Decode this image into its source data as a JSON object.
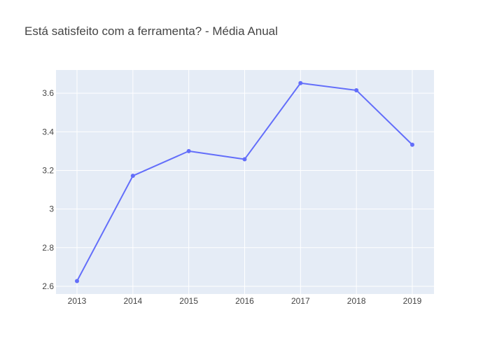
{
  "chart_data": {
    "type": "line",
    "title": "Está satisfeito com a ferramenta?  - Média Anual",
    "xlabel": "",
    "ylabel": "",
    "categories": [
      "2013",
      "2014",
      "2015",
      "2016",
      "2017",
      "2018",
      "2019"
    ],
    "series": [
      {
        "values": [
          2.627,
          3.172,
          3.3,
          3.258,
          3.652,
          3.615,
          3.333
        ]
      }
    ],
    "ylim": [
      2.56,
      3.72
    ],
    "yticks": [
      2.6,
      2.8,
      3,
      3.2,
      3.4,
      3.6
    ],
    "ytick_labels": [
      "2.6",
      "2.8",
      "3",
      "3.2",
      "3.4",
      "3.6"
    ],
    "grid": true,
    "legend": "none",
    "colors": {
      "line": "#636efa",
      "plot_background": "#e5ecf6",
      "grid": "#ffffff",
      "text": "#444444"
    }
  }
}
